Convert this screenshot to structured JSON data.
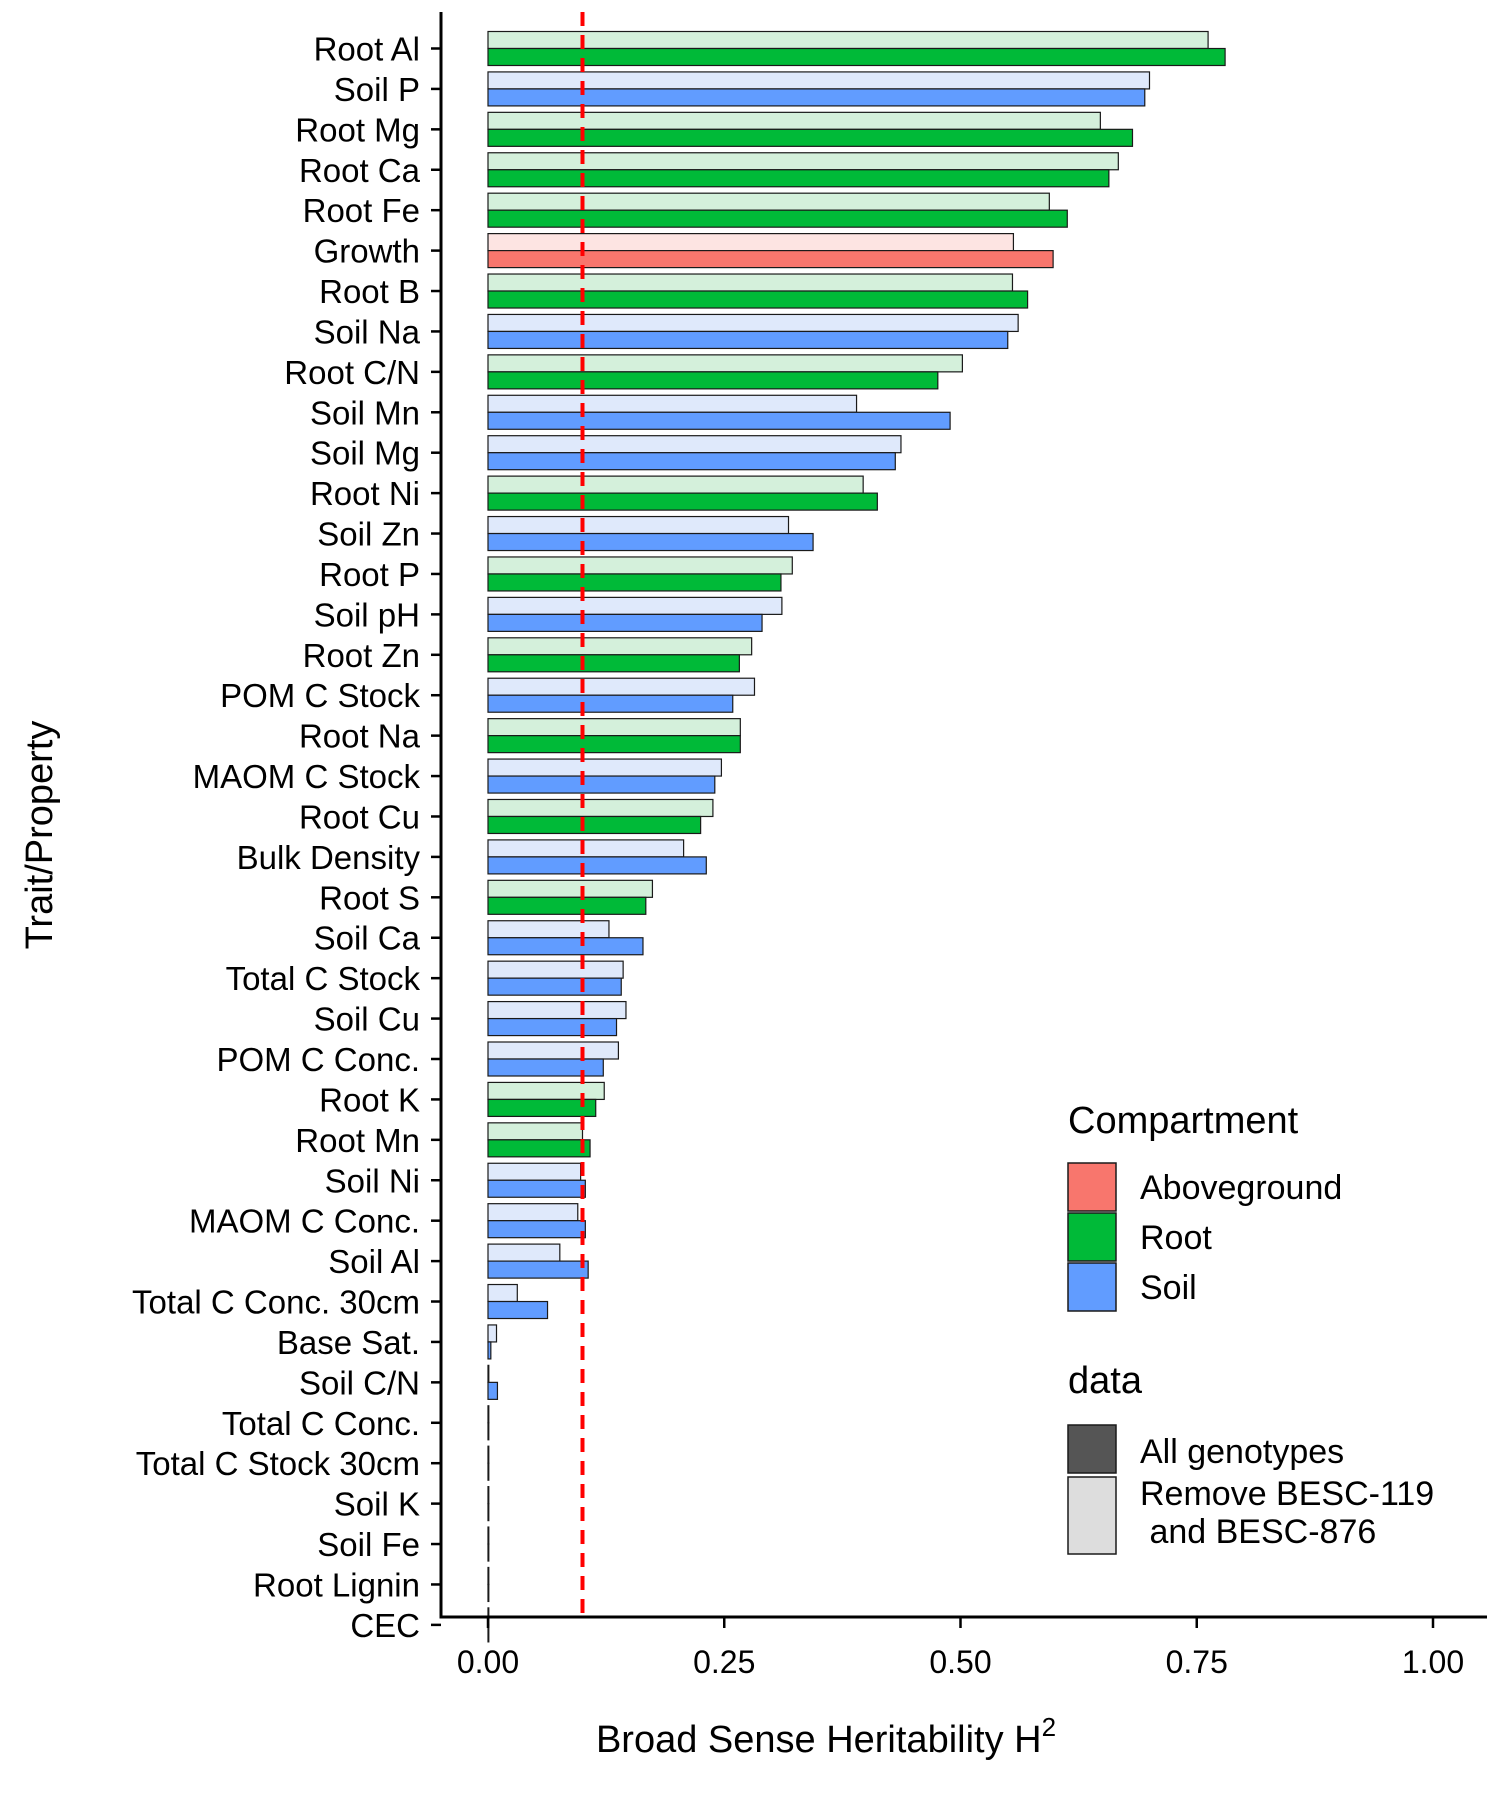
{
  "chart_data": {
    "type": "bar",
    "orientation": "horizontal",
    "xlabel": "Broad Sense Heritability H",
    "xlabel_superscript": "2",
    "ylabel": "Trait/Property",
    "xlim": [
      0,
      1.0
    ],
    "xticks": [
      "0.00",
      "0.25",
      "0.50",
      "0.75",
      "1.00"
    ],
    "reference_line": {
      "x": 0.1,
      "color": "#ff0000",
      "style": "dashed"
    },
    "grid": false,
    "legend_position": "right",
    "legend": {
      "compartment_title": "Compartment",
      "compartments": [
        {
          "name": "Aboveground",
          "color": "#f8766d",
          "light_color": "#fde4e2"
        },
        {
          "name": "Root",
          "color": "#00ba38",
          "light_color": "#d4f0db"
        },
        {
          "name": "Soil",
          "color": "#619cff",
          "light_color": "#dfe9fb"
        }
      ],
      "data_title": "data",
      "data_items": [
        {
          "label": "All genotypes",
          "color": "#555555"
        },
        {
          "label_lines": [
            "Remove BESC-119",
            " and BESC-876"
          ],
          "color": "#dddddd"
        }
      ]
    },
    "categories": [
      "Root Al",
      "Soil P",
      "Root Mg",
      "Root Ca",
      "Root Fe",
      "Growth",
      "Root B",
      "Soil Na",
      "Root C/N",
      "Soil Mn",
      "Soil Mg",
      "Root Ni",
      "Soil Zn",
      "Root P",
      "Soil pH",
      "Root Zn",
      "POM C Stock",
      "Root Na",
      "MAOM C Stock",
      "Root Cu",
      "Bulk Density",
      "Root S",
      "Soil Ca",
      "Total C Stock",
      "Soil Cu",
      "POM C Conc.",
      "Root K",
      "Root Mn",
      "Soil Ni",
      "MAOM C Conc.",
      "Soil Al",
      "Total C Conc. 30cm",
      "Base Sat.",
      "Soil C/N",
      "Total C Conc.",
      "Total C Stock 30cm",
      "Soil K",
      "Soil Fe",
      "Root Lignin",
      "CEC"
    ],
    "compartment": [
      "Root",
      "Soil",
      "Root",
      "Root",
      "Root",
      "Aboveground",
      "Root",
      "Soil",
      "Root",
      "Soil",
      "Soil",
      "Root",
      "Soil",
      "Root",
      "Soil",
      "Root",
      "Soil",
      "Root",
      "Soil",
      "Root",
      "Soil",
      "Root",
      "Soil",
      "Soil",
      "Soil",
      "Soil",
      "Root",
      "Root",
      "Soil",
      "Soil",
      "Soil",
      "Soil",
      "Soil",
      "Soil",
      "Soil",
      "Soil",
      "Soil",
      "Soil",
      "Root",
      "Soil"
    ],
    "series": [
      {
        "name": "Remove BESC-119\n and BESC-876",
        "values": [
          0.762,
          0.7,
          0.648,
          0.667,
          0.594,
          0.556,
          0.555,
          0.561,
          0.502,
          0.39,
          0.437,
          0.397,
          0.318,
          0.322,
          0.311,
          0.279,
          0.282,
          0.267,
          0.247,
          0.238,
          0.207,
          0.174,
          0.128,
          0.143,
          0.146,
          0.138,
          0.123,
          0.1,
          0.098,
          0.095,
          0.076,
          0.031,
          0.009,
          0.0,
          0.0,
          0.0,
          0.0,
          0.0,
          0.0,
          0.0
        ]
      },
      {
        "name": "All genotypes",
        "values": [
          0.78,
          0.695,
          0.682,
          0.657,
          0.613,
          0.598,
          0.571,
          0.55,
          0.476,
          0.489,
          0.431,
          0.412,
          0.344,
          0.31,
          0.29,
          0.266,
          0.259,
          0.267,
          0.24,
          0.225,
          0.231,
          0.167,
          0.164,
          0.141,
          0.136,
          0.122,
          0.114,
          0.108,
          0.103,
          0.103,
          0.106,
          0.063,
          0.003,
          0.01,
          0.0,
          0.0,
          0.0,
          0.0,
          0.0,
          0.0
        ]
      }
    ]
  }
}
